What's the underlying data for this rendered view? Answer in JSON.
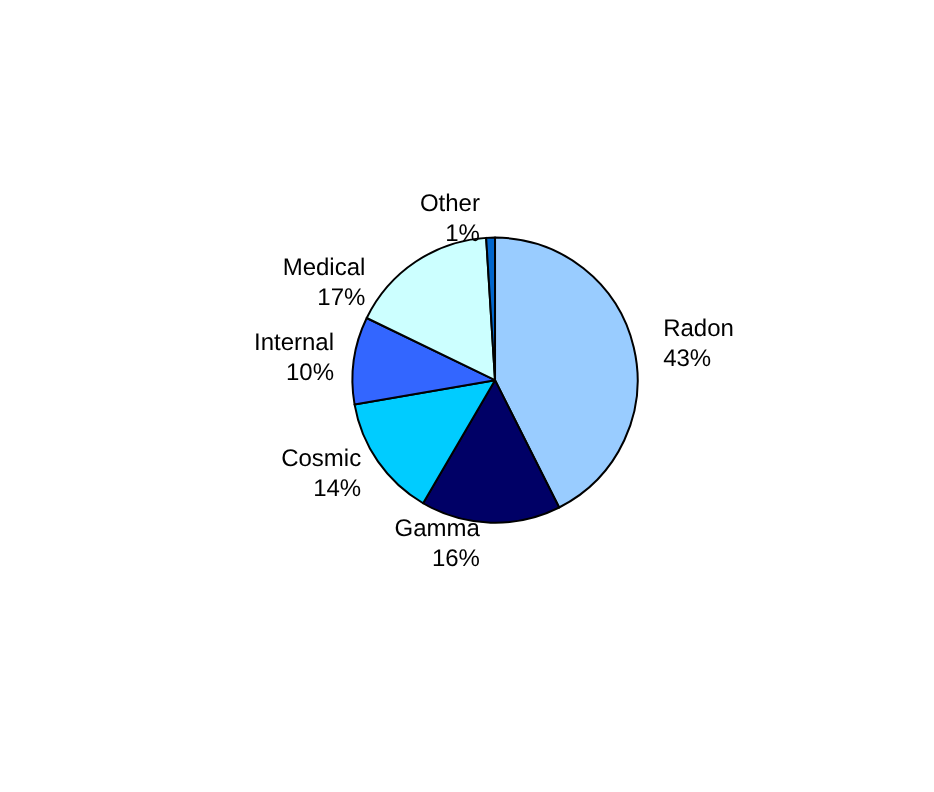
{
  "chart_data": {
    "type": "pie",
    "categories": [
      "Radon",
      "Gamma",
      "Cosmic",
      "Internal",
      "Medical",
      "Other"
    ],
    "values": [
      43,
      16,
      14,
      10,
      17,
      1
    ],
    "value_labels": [
      "43%",
      "16%",
      "14%",
      "10%",
      "17%",
      "1%"
    ],
    "colors": [
      "#99ccff",
      "#000066",
      "#00ccff",
      "#3366ff",
      "#ccffff",
      "#0066cc"
    ],
    "legend": false
  }
}
